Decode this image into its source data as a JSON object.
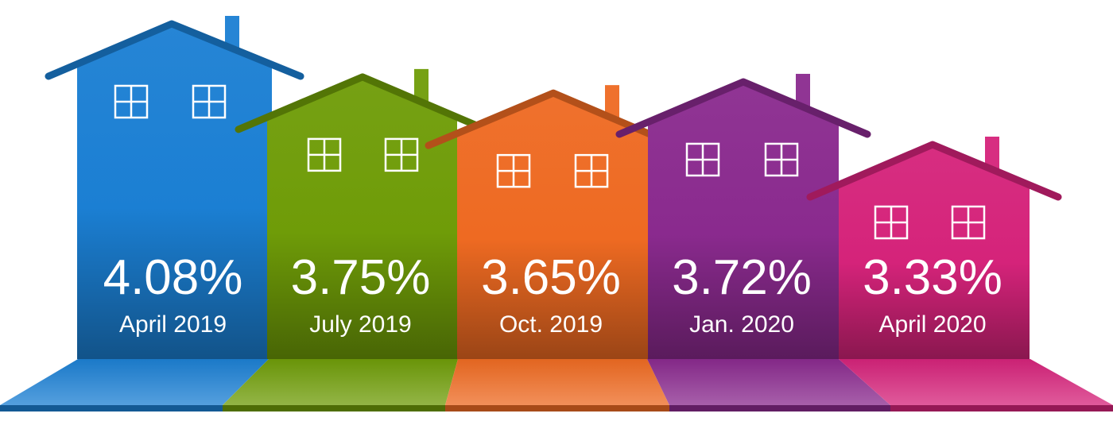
{
  "chart_data": {
    "type": "bar",
    "categories": [
      "April 2019",
      "July 2019",
      "Oct. 2019",
      "Jan. 2020",
      "April 2020"
    ],
    "values": [
      4.08,
      3.75,
      3.65,
      3.72,
      3.33
    ],
    "value_labels": [
      "4.08%",
      "3.75%",
      "3.65%",
      "3.72%",
      "3.33%"
    ],
    "title": "",
    "xlabel": "",
    "ylabel": "",
    "colors": [
      "#1b7fd3",
      "#6f9c08",
      "#ee6a22",
      "#8a2a8e",
      "#d5237a"
    ]
  }
}
